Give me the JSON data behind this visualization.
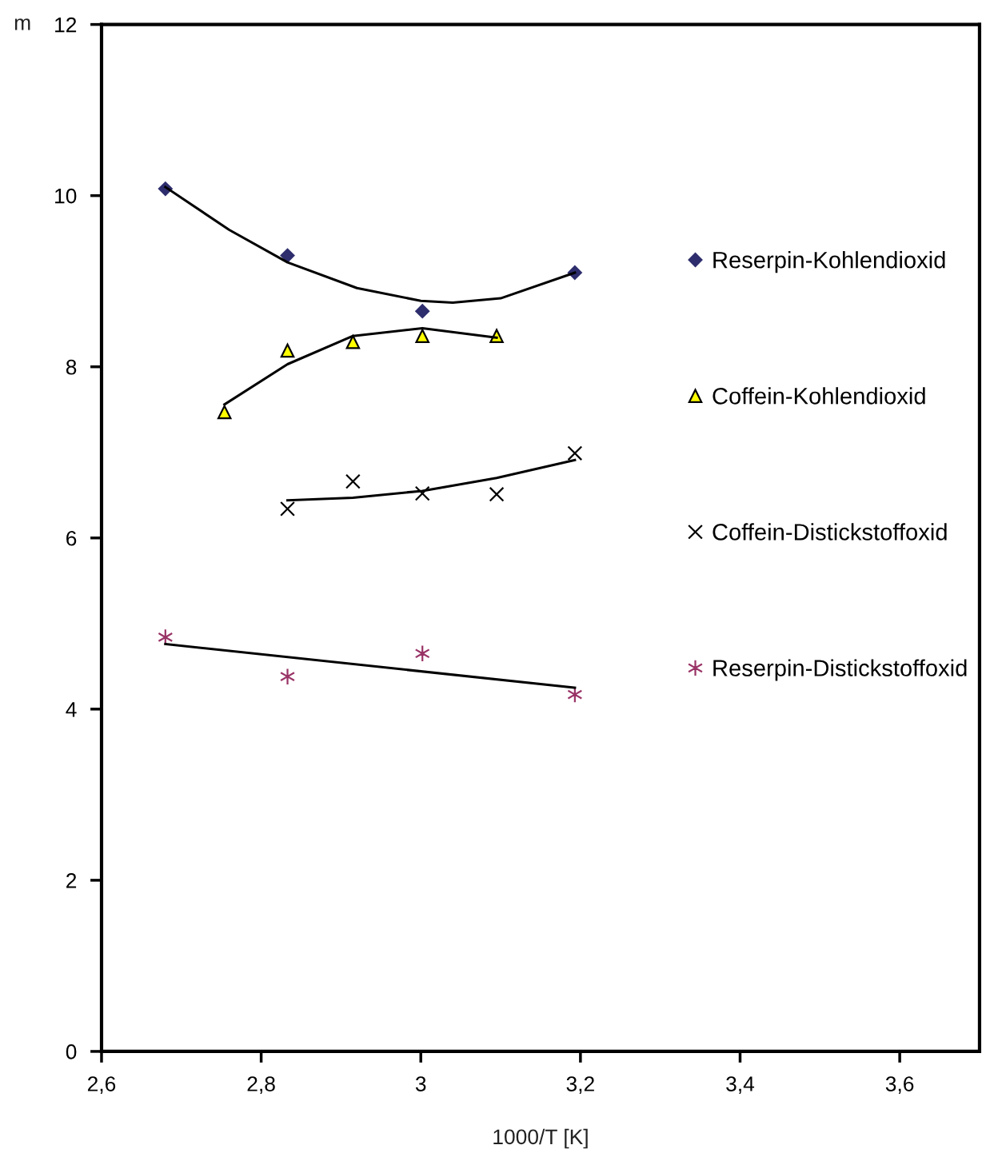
{
  "chart_data": {
    "type": "scatter",
    "xlabel": "1000/T [K]",
    "ylabel": "m",
    "xlim": [
      2.6,
      3.7
    ],
    "ylim": [
      0,
      12
    ],
    "xticks": [
      {
        "value": 2.6,
        "label": "2,6"
      },
      {
        "value": 2.8,
        "label": "2,8"
      },
      {
        "value": 3.0,
        "label": "3"
      },
      {
        "value": 3.2,
        "label": "3,2"
      },
      {
        "value": 3.4,
        "label": "3,4"
      },
      {
        "value": 3.6,
        "label": "3,6"
      }
    ],
    "yticks": [
      0,
      2,
      4,
      6,
      8,
      10,
      12
    ],
    "grid": false,
    "legend": "right",
    "series": [
      {
        "name": "Reserpin-Kohlendioxid",
        "color": "#2e2e6e",
        "marker": "diamond",
        "x": [
          2.68,
          2.833,
          3.002,
          3.193
        ],
        "values": [
          10.08,
          9.3,
          8.65,
          9.1
        ]
      },
      {
        "name": "Coffein-Kohlendioxid",
        "color": "#ffff00",
        "marker": "triangle",
        "x": [
          2.754,
          2.833,
          2.915,
          3.002,
          3.095
        ],
        "values": [
          7.47,
          8.19,
          8.29,
          8.36,
          8.36
        ]
      },
      {
        "name": "Coffein-Distickstoffoxid",
        "color": "#000000",
        "marker": "cross",
        "x": [
          2.833,
          2.915,
          3.002,
          3.095,
          3.193
        ],
        "values": [
          6.34,
          6.66,
          6.52,
          6.51,
          6.99
        ]
      },
      {
        "name": "Reserpin-Distickstoffoxid",
        "color": "#993366",
        "x": [
          2.68,
          2.833,
          3.002,
          3.193
        ],
        "values": [
          4.84,
          4.38,
          4.65,
          4.17
        ]
      },
      {
        "type": "line",
        "color": "#000000",
        "x": [
          2.68,
          2.76,
          2.833,
          2.92,
          3.0,
          3.04,
          3.1,
          3.193
        ],
        "values": [
          10.1,
          9.6,
          9.22,
          8.92,
          8.77,
          8.75,
          8.8,
          9.1
        ]
      },
      {
        "type": "line",
        "color": "#000000",
        "x": [
          2.754,
          2.833,
          2.915,
          3.002,
          3.095
        ],
        "values": [
          7.56,
          8.03,
          8.36,
          8.45,
          8.34
        ]
      },
      {
        "type": "line",
        "color": "#000000",
        "x": [
          2.833,
          2.915,
          3.002,
          3.095,
          3.193
        ],
        "values": [
          6.44,
          6.47,
          6.55,
          6.7,
          6.91
        ]
      },
      {
        "type": "line",
        "color": "#000000",
        "x": [
          2.68,
          3.193
        ],
        "values": [
          4.76,
          4.25
        ]
      }
    ]
  }
}
